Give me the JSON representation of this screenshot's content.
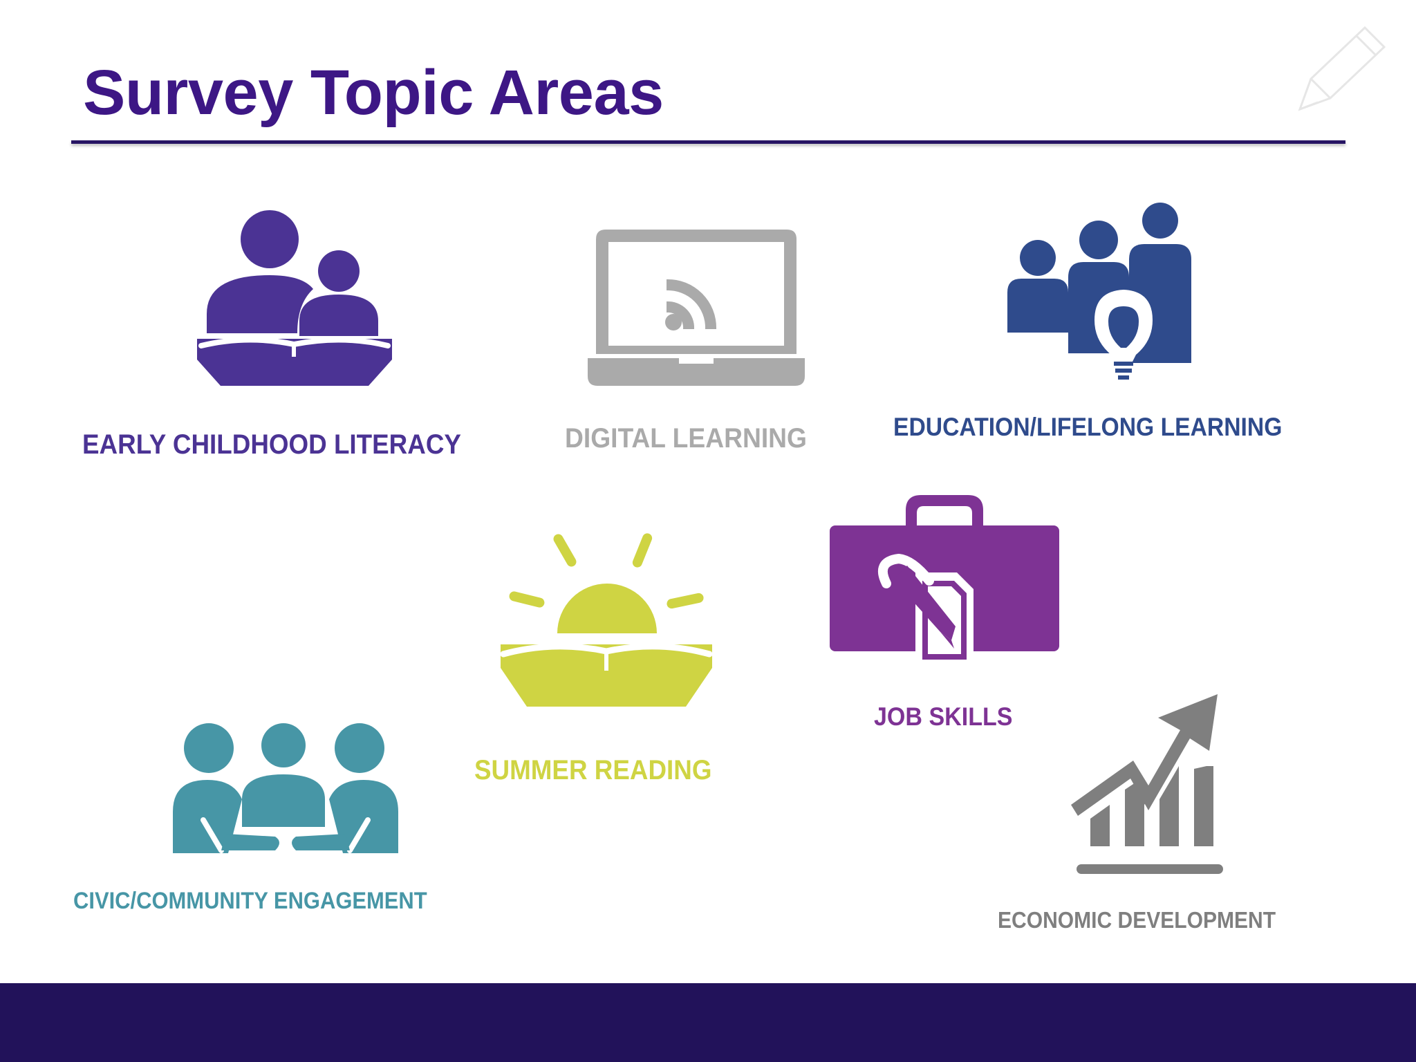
{
  "slide": {
    "title": "Survey Topic Areas"
  },
  "topics": [
    {
      "label": "EARLY CHILDHOOD LITERACY",
      "icon": "parent-child-reading-icon",
      "color": "#4b3394"
    },
    {
      "label": "DIGITAL LEARNING",
      "icon": "laptop-wifi-icon",
      "color": "#aaaaaa"
    },
    {
      "label": "EDUCATION/LIFELONG LEARNING",
      "icon": "people-lightbulb-icon",
      "color": "#2f4b8c"
    },
    {
      "label": "SUMMER READING",
      "icon": "sun-book-icon",
      "color": "#cfd443"
    },
    {
      "label": "JOB SKILLS",
      "icon": "briefcase-document-icon",
      "color": "#7e3394"
    },
    {
      "label": "CIVIC/COMMUNITY ENGAGEMENT",
      "icon": "group-meeting-icon",
      "color": "#4796a6"
    },
    {
      "label": "ECONOMIC DEVELOPMENT",
      "icon": "growth-chart-icon",
      "color": "#7f7f7f"
    }
  ],
  "colors": {
    "title": "#3d1785",
    "rule": "#271564",
    "footer": "#22125a"
  }
}
